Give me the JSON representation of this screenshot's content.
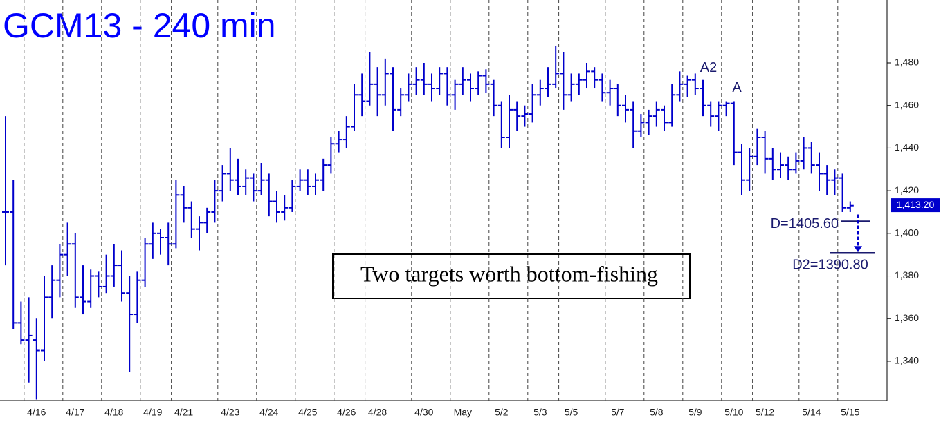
{
  "chart_data": {
    "type": "ohlc",
    "title": "GCM13 - 240 min",
    "color": "#0000cc",
    "ylim": [
      1321.5,
      1509.5
    ],
    "yticks": [
      {
        "value": 1340,
        "label": "1,340"
      },
      {
        "value": 1360,
        "label": "1,360"
      },
      {
        "value": 1380,
        "label": "1,380"
      },
      {
        "value": 1400,
        "label": "1,400"
      },
      {
        "value": 1420,
        "label": "1,420"
      },
      {
        "value": 1440,
        "label": "1,440"
      },
      {
        "value": 1460,
        "label": "1,460"
      },
      {
        "value": 1480,
        "label": "1,480"
      }
    ],
    "last_price": {
      "value": 1413.2,
      "label": "1,413.20"
    },
    "annotations": [
      "A2",
      "A"
    ],
    "note": "Two targets worth bottom-fishing",
    "targets": [
      {
        "label": "D=1405.60",
        "value": 1405.6
      },
      {
        "label": "D2=1390.80",
        "value": 1390.8
      }
    ],
    "categories": [
      null,
      null,
      null,
      null,
      "4/16",
      null,
      null,
      null,
      null,
      "4/17",
      null,
      null,
      null,
      null,
      "4/18",
      null,
      null,
      null,
      null,
      "4/19",
      null,
      null,
      null,
      "4/21",
      null,
      null,
      null,
      null,
      null,
      "4/23",
      null,
      null,
      null,
      null,
      "4/24",
      null,
      null,
      null,
      null,
      "4/25",
      null,
      null,
      null,
      null,
      "4/26",
      null,
      null,
      null,
      "4/28",
      null,
      null,
      null,
      null,
      null,
      "4/30",
      null,
      null,
      null,
      null,
      "May",
      null,
      null,
      null,
      null,
      "5/2",
      null,
      null,
      null,
      null,
      "5/3",
      null,
      null,
      null,
      "5/5",
      null,
      null,
      null,
      null,
      null,
      "5/7",
      null,
      null,
      null,
      null,
      "5/8",
      null,
      null,
      null,
      null,
      "5/9",
      null,
      null,
      null,
      null,
      "5/10",
      null,
      null,
      null,
      "5/12",
      null,
      null,
      null,
      null,
      null,
      "5/14",
      null,
      null,
      null,
      null,
      "5/15"
    ],
    "ohlc": [
      [
        1410,
        1455,
        1385,
        1410
      ],
      [
        1410,
        1425,
        1355,
        1358
      ],
      [
        1358,
        1368,
        1348,
        1350
      ],
      [
        1350,
        1370,
        1330,
        1352
      ],
      [
        1350,
        1360,
        1322,
        1345
      ],
      [
        1345,
        1380,
        1340,
        1370
      ],
      [
        1370,
        1385,
        1360,
        1378
      ],
      [
        1378,
        1395,
        1370,
        1390
      ],
      [
        1390,
        1405,
        1380,
        1395
      ],
      [
        1395,
        1400,
        1365,
        1370
      ],
      [
        1370,
        1385,
        1362,
        1368
      ],
      [
        1368,
        1383,
        1365,
        1380
      ],
      [
        1380,
        1382,
        1370,
        1375
      ],
      [
        1375,
        1390,
        1372,
        1380
      ],
      [
        1380,
        1395,
        1375,
        1385
      ],
      [
        1385,
        1392,
        1368,
        1372
      ],
      [
        1372,
        1380,
        1335,
        1362
      ],
      [
        1362,
        1382,
        1358,
        1378
      ],
      [
        1378,
        1398,
        1375,
        1395
      ],
      [
        1395,
        1405,
        1388,
        1400
      ],
      [
        1400,
        1402,
        1390,
        1398
      ],
      [
        1398,
        1405,
        1385,
        1395
      ],
      [
        1395,
        1425,
        1393,
        1418
      ],
      [
        1418,
        1422,
        1405,
        1412
      ],
      [
        1412,
        1415,
        1398,
        1402
      ],
      [
        1402,
        1408,
        1392,
        1405
      ],
      [
        1405,
        1412,
        1400,
        1410
      ],
      [
        1410,
        1425,
        1405,
        1420
      ],
      [
        1420,
        1432,
        1415,
        1428
      ],
      [
        1428,
        1440,
        1420,
        1425
      ],
      [
        1425,
        1435,
        1418,
        1422
      ],
      [
        1422,
        1430,
        1418,
        1426
      ],
      [
        1426,
        1428,
        1415,
        1420
      ],
      [
        1420,
        1433,
        1418,
        1425
      ],
      [
        1425,
        1428,
        1408,
        1415
      ],
      [
        1415,
        1420,
        1405,
        1410
      ],
      [
        1410,
        1418,
        1406,
        1412
      ],
      [
        1412,
        1425,
        1410,
        1422
      ],
      [
        1422,
        1430,
        1420,
        1425
      ],
      [
        1425,
        1430,
        1418,
        1422
      ],
      [
        1422,
        1428,
        1418,
        1425
      ],
      [
        1425,
        1435,
        1420,
        1432
      ],
      [
        1432,
        1445,
        1428,
        1442
      ],
      [
        1442,
        1448,
        1438,
        1444
      ],
      [
        1444,
        1455,
        1440,
        1450
      ],
      [
        1450,
        1470,
        1448,
        1465
      ],
      [
        1465,
        1475,
        1455,
        1462
      ],
      [
        1462,
        1485,
        1460,
        1470
      ],
      [
        1470,
        1478,
        1455,
        1465
      ],
      [
        1465,
        1482,
        1460,
        1475
      ],
      [
        1475,
        1478,
        1448,
        1458
      ],
      [
        1458,
        1468,
        1455,
        1465
      ],
      [
        1465,
        1475,
        1462,
        1470
      ],
      [
        1470,
        1478,
        1465,
        1472
      ],
      [
        1472,
        1480,
        1465,
        1470
      ],
      [
        1470,
        1475,
        1462,
        1468
      ],
      [
        1468,
        1478,
        1465,
        1475
      ],
      [
        1475,
        1478,
        1460,
        1465
      ],
      [
        1465,
        1472,
        1458,
        1470
      ],
      [
        1470,
        1478,
        1465,
        1472
      ],
      [
        1472,
        1475,
        1462,
        1468
      ],
      [
        1468,
        1476,
        1465,
        1474
      ],
      [
        1474,
        1477,
        1466,
        1470
      ],
      [
        1470,
        1472,
        1455,
        1460
      ],
      [
        1460,
        1462,
        1440,
        1445
      ],
      [
        1445,
        1465,
        1440,
        1458
      ],
      [
        1458,
        1462,
        1448,
        1455
      ],
      [
        1455,
        1460,
        1450,
        1456
      ],
      [
        1456,
        1470,
        1452,
        1465
      ],
      [
        1465,
        1472,
        1460,
        1468
      ],
      [
        1468,
        1478,
        1464,
        1470
      ],
      [
        1470,
        1488,
        1468,
        1475
      ],
      [
        1475,
        1485,
        1458,
        1465
      ],
      [
        1465,
        1475,
        1462,
        1470
      ],
      [
        1470,
        1475,
        1465,
        1472
      ],
      [
        1472,
        1480,
        1468,
        1476
      ],
      [
        1476,
        1478,
        1468,
        1472
      ],
      [
        1472,
        1475,
        1462,
        1466
      ],
      [
        1466,
        1472,
        1460,
        1468
      ],
      [
        1468,
        1470,
        1455,
        1460
      ],
      [
        1460,
        1465,
        1452,
        1458
      ],
      [
        1458,
        1462,
        1440,
        1448
      ],
      [
        1448,
        1456,
        1445,
        1452
      ],
      [
        1452,
        1458,
        1446,
        1455
      ],
      [
        1455,
        1462,
        1450,
        1458
      ],
      [
        1458,
        1460,
        1448,
        1452
      ],
      [
        1452,
        1470,
        1450,
        1465
      ],
      [
        1465,
        1476,
        1462,
        1470
      ],
      [
        1470,
        1474,
        1464,
        1472
      ],
      [
        1472,
        1475,
        1465,
        1468
      ],
      [
        1468,
        1472,
        1455,
        1460
      ],
      [
        1460,
        1462,
        1450,
        1455
      ],
      [
        1455,
        1462,
        1448,
        1460
      ],
      [
        1460,
        1462,
        1455,
        1461
      ],
      [
        1461,
        1462,
        1432,
        1438
      ],
      [
        1438,
        1442,
        1418,
        1425
      ],
      [
        1425,
        1440,
        1420,
        1436
      ],
      [
        1436,
        1449,
        1432,
        1445
      ],
      [
        1445,
        1448,
        1428,
        1435
      ],
      [
        1435,
        1440,
        1425,
        1430
      ],
      [
        1430,
        1438,
        1426,
        1432
      ],
      [
        1432,
        1436,
        1425,
        1430
      ],
      [
        1430,
        1438,
        1428,
        1434
      ],
      [
        1434,
        1445,
        1430,
        1440
      ],
      [
        1440,
        1443,
        1428,
        1432
      ],
      [
        1432,
        1438,
        1420,
        1428
      ],
      [
        1428,
        1432,
        1418,
        1425
      ],
      [
        1425,
        1430,
        1418,
        1426
      ],
      [
        1426,
        1428,
        1410,
        1412
      ],
      [
        1412,
        1415,
        1410,
        1413
      ]
    ]
  }
}
